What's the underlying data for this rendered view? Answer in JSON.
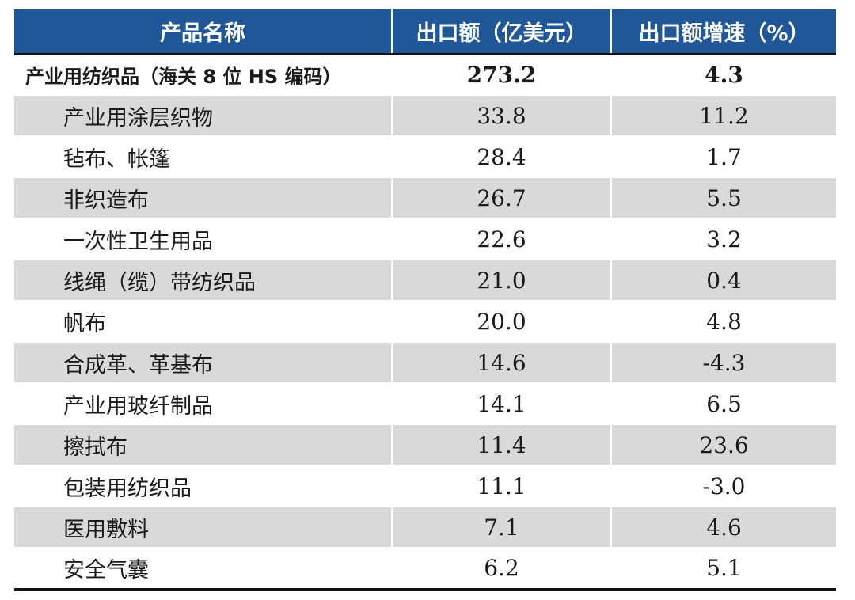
{
  "table": {
    "headers": [
      "产品名称",
      "出口额（亿美元）",
      "出口额增速（%）"
    ],
    "total": {
      "name": "产业用纺织品（海关 8 位 HS 编码）",
      "export": "273.2",
      "growth": "4.3"
    },
    "rows": [
      {
        "name": "产业用涂层织物",
        "export": "33.8",
        "growth": "11.2"
      },
      {
        "name": "毡布、帐篷",
        "export": "28.4",
        "growth": "1.7"
      },
      {
        "name": "非织造布",
        "export": "26.7",
        "growth": "5.5"
      },
      {
        "name": "一次性卫生用品",
        "export": "22.6",
        "growth": "3.2"
      },
      {
        "name": "线绳（缆）带纺织品",
        "export": "21.0",
        "growth": "0.4"
      },
      {
        "name": "帆布",
        "export": "20.0",
        "growth": "4.8"
      },
      {
        "name": "合成革、革基布",
        "export": "14.6",
        "growth": "-4.3"
      },
      {
        "name": "产业用玻纤制品",
        "export": "14.1",
        "growth": "6.5"
      },
      {
        "name": "擦拭布",
        "export": "11.4",
        "growth": "23.6"
      },
      {
        "name": "包装用纺织品",
        "export": "11.1",
        "growth": "-3.0"
      },
      {
        "name": "医用敷料",
        "export": "7.1",
        "growth": "4.6"
      },
      {
        "name": "安全气囊",
        "export": "6.2",
        "growth": "5.1"
      }
    ]
  },
  "colors": {
    "header_bg": "#1f5799",
    "header_text": "#ffffff",
    "row_shade": "#d9d9d9",
    "rule": "#111111"
  }
}
